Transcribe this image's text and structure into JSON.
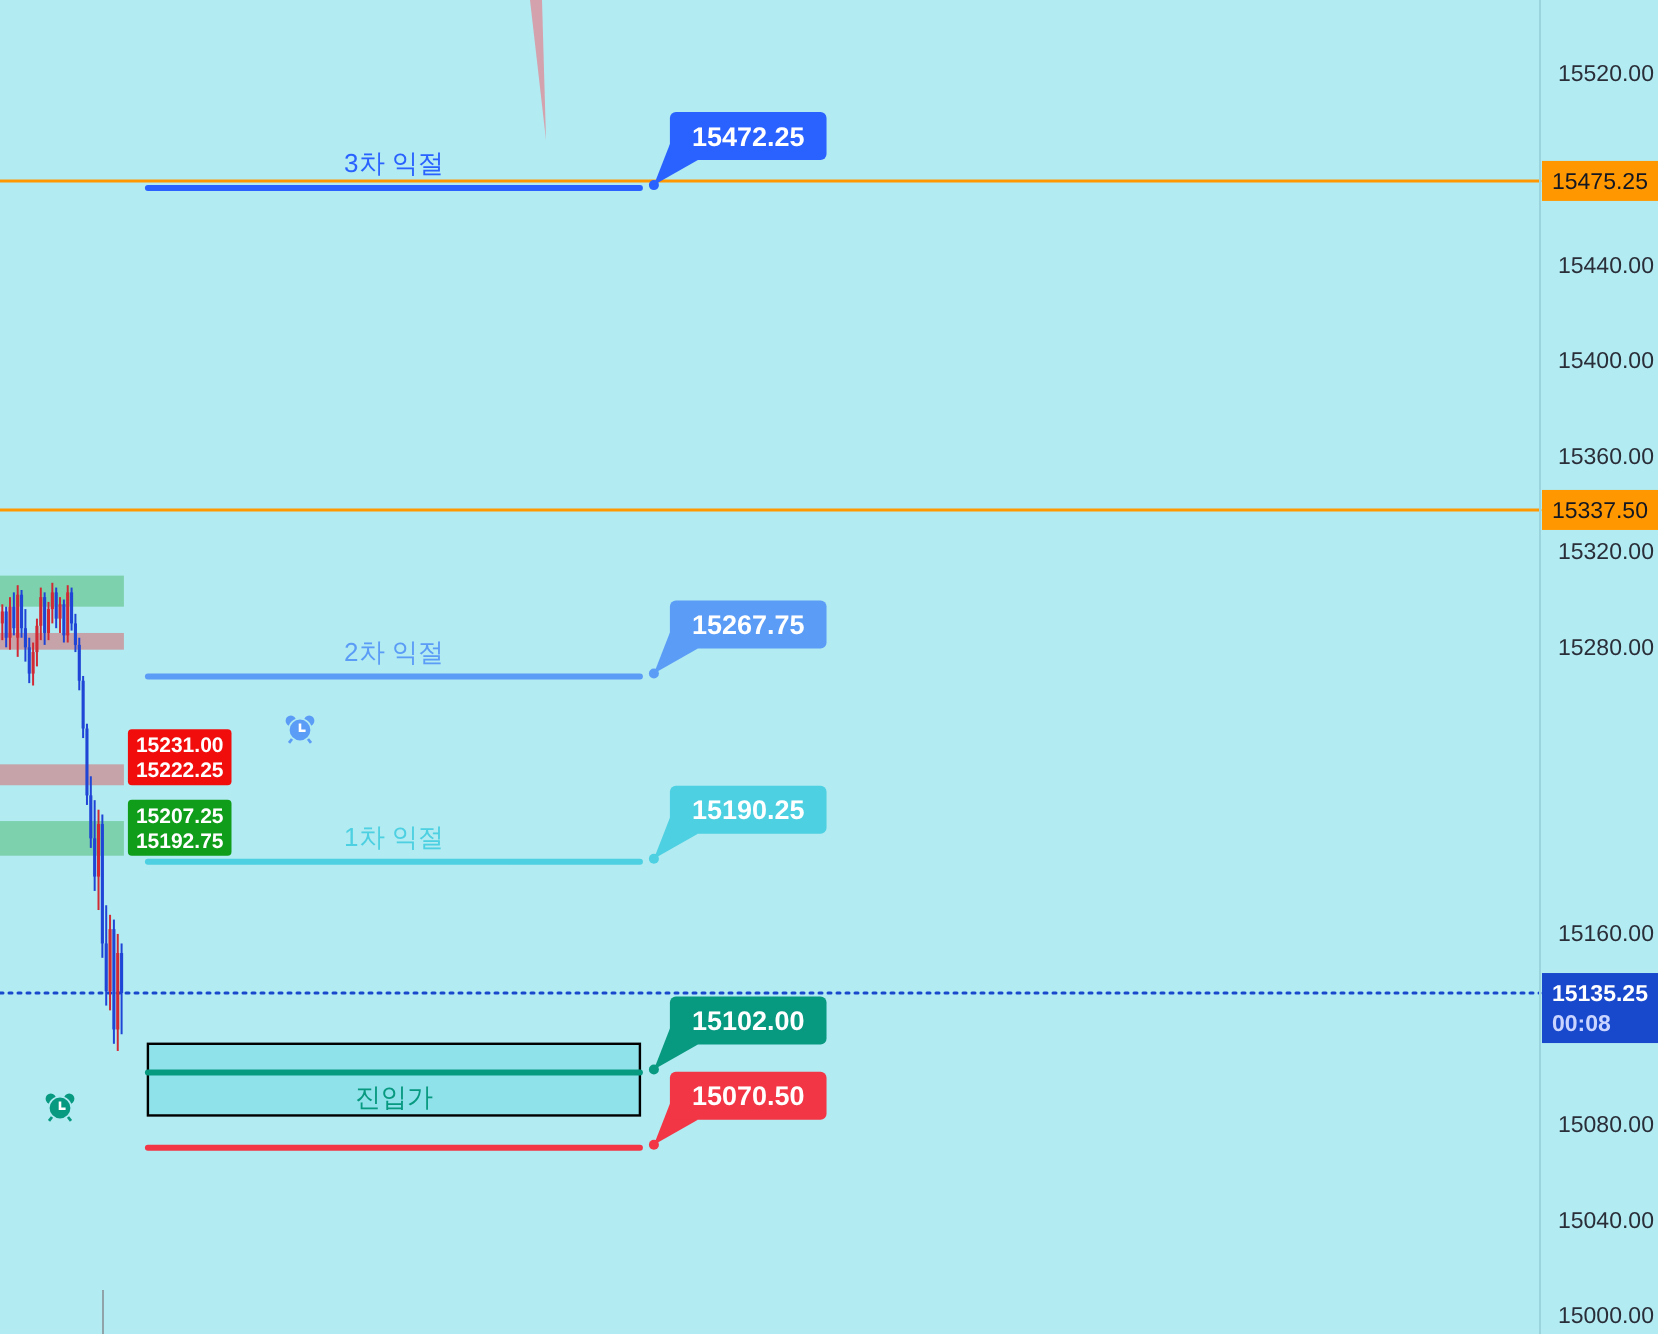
{
  "chart_data": {
    "type": "candlestick",
    "categories": [
      null,
      null,
      null,
      null,
      null,
      null,
      null,
      null,
      null,
      null,
      null,
      null,
      null,
      null,
      null,
      null,
      null,
      null,
      null,
      null,
      null,
      null,
      null,
      null,
      null,
      null,
      null,
      null,
      null,
      null,
      null,
      null,
      null,
      null,
      null,
      null,
      null,
      null,
      null,
      null,
      null,
      null,
      null,
      null,
      null,
      null,
      null,
      null,
      null,
      null,
      null,
      null,
      null,
      null,
      null,
      null,
      null,
      null,
      null,
      null,
      null,
      null,
      null,
      null,
      null,
      null,
      null,
      null,
      null,
      null,
      null,
      null,
      null,
      null,
      null,
      null,
      null,
      null,
      null,
      null,
      null,
      null,
      null,
      null,
      null,
      null,
      null,
      null,
      null,
      null,
      null,
      null,
      null,
      null,
      null,
      null,
      null,
      null,
      null,
      null,
      null,
      null,
      null,
      null,
      null,
      null,
      null,
      null,
      null,
      null,
      null,
      null,
      null,
      null,
      null,
      null,
      null,
      null,
      null,
      null,
      null,
      null,
      null,
      null,
      null,
      null,
      null,
      null,
      null,
      null,
      null,
      null,
      null,
      null,
      null,
      null,
      null,
      null,
      null,
      null,
      null,
      null,
      null,
      null,
      null,
      null,
      null,
      null,
      null,
      null,
      null,
      null,
      null,
      null,
      null,
      null,
      null,
      null,
      null,
      null,
      null,
      null,
      null,
      null,
      null,
      null,
      null,
      null,
      null,
      null,
      null,
      null,
      null,
      null,
      null,
      null,
      null,
      null,
      null,
      null,
      null,
      null,
      null,
      null,
      null,
      null,
      null,
      null,
      null,
      null,
      null,
      null,
      null,
      null,
      null,
      null,
      null,
      null,
      null,
      null,
      null,
      null,
      null,
      null,
      null,
      null,
      null,
      null,
      null,
      null,
      null,
      null,
      null,
      null,
      null,
      null,
      null,
      null,
      null,
      null,
      null,
      null,
      null,
      null,
      null,
      null,
      null,
      null,
      null,
      null,
      null,
      null,
      null,
      null,
      null,
      null,
      null,
      null,
      null,
      null,
      null,
      null,
      null,
      null,
      null,
      null,
      null,
      null,
      null,
      null,
      null,
      null,
      null,
      null,
      null,
      null,
      null,
      null,
      null,
      null,
      null,
      null,
      null,
      null,
      null,
      null,
      null,
      null,
      null,
      null,
      null,
      null,
      null,
      null,
      null,
      null,
      null,
      null,
      null,
      null,
      null,
      null,
      null,
      null,
      null,
      null,
      null,
      null,
      null,
      null,
      null,
      null,
      null,
      null,
      null,
      null,
      null,
      null,
      null,
      null,
      null,
      null,
      null,
      null,
      null,
      null,
      null,
      null,
      null,
      null,
      null,
      null,
      null,
      null,
      null,
      null,
      null,
      null,
      null,
      null,
      null,
      null,
      null,
      null,
      null,
      null,
      null,
      null,
      null,
      null,
      null,
      null,
      null,
      null,
      null,
      null,
      null,
      null,
      null,
      null,
      null,
      null,
      null,
      null,
      null,
      null,
      null,
      null,
      null,
      null,
      null,
      null,
      null,
      null,
      null,
      null,
      null,
      null,
      null,
      null,
      null,
      null,
      null,
      null,
      null,
      null,
      null,
      null,
      null,
      null,
      null,
      null,
      null,
      null,
      null,
      null,
      null,
      null,
      null,
      null,
      null,
      null,
      null,
      null,
      null,
      null,
      null,
      null,
      null,
      null,
      null,
      null,
      null,
      null,
      null,
      null,
      null,
      null,
      null,
      null
    ],
    "ohlc": [
      [
        15290,
        15298,
        15283,
        15295
      ],
      [
        15295,
        15297,
        15280,
        15284
      ],
      [
        15284,
        15301,
        15279,
        15297
      ],
      [
        15297,
        15303,
        15285,
        15288
      ],
      [
        15284,
        15306,
        15276,
        15302
      ],
      [
        15302,
        15304,
        15284,
        15288
      ],
      [
        15288,
        15296,
        15274,
        15280
      ],
      [
        15280,
        15284,
        15265,
        15269
      ],
      [
        15269,
        15282,
        15264,
        15278
      ],
      [
        15278,
        15292,
        15272,
        15289
      ],
      [
        15289,
        15305,
        15283,
        15301
      ],
      [
        15301,
        15303,
        15281,
        15286
      ],
      [
        15286,
        15299,
        15283,
        15296
      ],
      [
        15296,
        15307,
        15290,
        15303
      ],
      [
        15303,
        15305,
        15288,
        15292
      ],
      [
        15292,
        15301,
        15286,
        15298
      ],
      [
        15298,
        15300,
        15282,
        15285
      ],
      [
        15285,
        15306,
        15282,
        15303
      ],
      [
        15303,
        15305,
        15287,
        15290
      ],
      [
        15290,
        15294,
        15278,
        15281
      ],
      [
        15281,
        15284,
        15262,
        15266
      ],
      [
        15266,
        15268,
        15242,
        15246
      ],
      [
        15246,
        15248,
        15214,
        15218
      ],
      [
        15218,
        15226,
        15196,
        15200
      ],
      [
        15200,
        15216,
        15178,
        15184
      ],
      [
        15184,
        15212,
        15170,
        15206
      ],
      [
        15206,
        15210,
        15150,
        15156
      ],
      [
        15156,
        15172,
        15130,
        15136
      ],
      [
        15136,
        15168,
        15128,
        15162
      ],
      [
        15162,
        15166,
        15114,
        15120
      ],
      [
        15120,
        15160,
        15111,
        15152
      ],
      [
        15152,
        15156,
        15118,
        15135.25
      ],
      null,
      null,
      null,
      null,
      null,
      null,
      null,
      null,
      null,
      null,
      null,
      null,
      null,
      null,
      null,
      null,
      null,
      null,
      null,
      null,
      null,
      null,
      null,
      null,
      null,
      null,
      null,
      null,
      null,
      null,
      null,
      null,
      null,
      null,
      null,
      null,
      null,
      null,
      null,
      null,
      null,
      null,
      null,
      null,
      null,
      null,
      null,
      null,
      null,
      null,
      null,
      null,
      null,
      null,
      null,
      null,
      null,
      null,
      null,
      null,
      null,
      null,
      null,
      null,
      null,
      null,
      null,
      null,
      null,
      null,
      null,
      null,
      null,
      null,
      null,
      null,
      null,
      null,
      null,
      null,
      null,
      null,
      null,
      null,
      null,
      null,
      null,
      null,
      null,
      null,
      null,
      null,
      null,
      null,
      null,
      null,
      null,
      null,
      null,
      null,
      null,
      null,
      null,
      null,
      null,
      null,
      null,
      null,
      null,
      null,
      null,
      null,
      null,
      null,
      null,
      null,
      null,
      null,
      null,
      null,
      null,
      null,
      null,
      null,
      null,
      null,
      null,
      null,
      null,
      null,
      null,
      null,
      null,
      null,
      null,
      null,
      null,
      null,
      null,
      null,
      null,
      null,
      null,
      null,
      null,
      null,
      null,
      null,
      null,
      null,
      null,
      null,
      null,
      null,
      null,
      null,
      null,
      null,
      null,
      null,
      null,
      null,
      null,
      null,
      null,
      null,
      null,
      null,
      null,
      null,
      null,
      null,
      null,
      null,
      null,
      null,
      null,
      null,
      null,
      null,
      null,
      null,
      null,
      null,
      null,
      null,
      null,
      null,
      null,
      null,
      null,
      null,
      null,
      null,
      null,
      null,
      null,
      null,
      null,
      null,
      null,
      null,
      null,
      null,
      null,
      null,
      null,
      null,
      null,
      null,
      null,
      null,
      null,
      null,
      null,
      null,
      null,
      null,
      null,
      null,
      null,
      null,
      null,
      null,
      null,
      null,
      null,
      null,
      null,
      null,
      null,
      null,
      null,
      null,
      null,
      null,
      null,
      null,
      null,
      null,
      null,
      null,
      null,
      null,
      null,
      null,
      null,
      null,
      null,
      null,
      null,
      null,
      null,
      null,
      null,
      null,
      null,
      null,
      null,
      null,
      null,
      null,
      null,
      null,
      null,
      null,
      null,
      null,
      null,
      null,
      null,
      null,
      null,
      null,
      null,
      null,
      null,
      null,
      null,
      null,
      null,
      null,
      null,
      null,
      null,
      null,
      null,
      null,
      null,
      null,
      null,
      null,
      null,
      null,
      null,
      null,
      null,
      null,
      null,
      null,
      null,
      null,
      null,
      null,
      null,
      null,
      null,
      null,
      null,
      null,
      null,
      null,
      null,
      null,
      null,
      null,
      null,
      null,
      null,
      null,
      null,
      null,
      null,
      null,
      null,
      null,
      null,
      null,
      null,
      null,
      null,
      null,
      null,
      null,
      null,
      null,
      null,
      null,
      null,
      null,
      null,
      null,
      null,
      null,
      null,
      null,
      null,
      null,
      null,
      null,
      null,
      null,
      null,
      null,
      null,
      null,
      null,
      null,
      null,
      null,
      null,
      null,
      null,
      null,
      null,
      null,
      null,
      null
    ],
    "colors": [
      "#d12a35",
      "#1f45d6",
      "#d12a35",
      "#1f45d6",
      "#d12a35",
      "#1f45d6",
      "#1f45d6",
      "#1f45d6",
      "#d12a35",
      "#d12a35",
      "#d12a35",
      "#1f45d6",
      "#d12a35",
      "#d12a35",
      "#1f45d6",
      "#d12a35",
      "#1f45d6",
      "#d12a35",
      "#1f45d6",
      "#1f45d6",
      "#1f45d6",
      "#1f45d6",
      "#1f45d6",
      "#1f45d6",
      "#1f45d6",
      "#d12a35",
      "#1f45d6",
      "#1f45d6",
      "#d12a35",
      "#1f45d6",
      "#d12a35",
      "#1f45d6",
      null,
      null,
      null,
      null,
      null,
      null,
      null,
      null,
      null,
      null,
      null,
      null,
      null,
      null,
      null,
      null,
      null,
      null,
      null,
      null,
      null,
      null,
      null,
      null,
      null,
      null,
      null,
      null,
      null,
      null,
      null,
      null,
      null,
      null,
      null,
      null,
      null,
      null,
      null,
      null,
      null,
      null,
      null,
      null,
      null,
      null,
      null,
      null,
      null,
      null,
      null,
      null,
      null,
      null,
      null,
      null,
      null,
      null,
      null,
      null,
      null,
      null,
      null,
      null,
      null,
      null,
      null,
      null,
      null,
      null,
      null,
      null,
      null,
      null,
      null,
      null,
      null,
      null,
      null,
      null,
      null,
      null,
      null,
      null,
      null,
      null,
      null,
      null,
      null,
      null,
      null,
      null,
      null,
      null,
      null,
      null,
      null,
      null,
      null,
      null,
      null,
      null,
      null,
      null,
      null,
      null,
      null,
      null,
      null,
      null,
      null,
      null,
      null,
      null,
      null,
      null,
      null,
      null,
      null,
      null,
      null,
      null,
      null,
      null,
      null,
      null,
      null,
      null,
      null,
      null,
      null,
      null,
      null,
      null,
      null,
      null,
      null,
      null,
      null,
      null,
      null,
      null,
      null,
      null,
      null,
      null,
      null,
      null,
      null,
      null,
      null,
      null,
      null,
      null,
      null,
      null,
      null,
      null,
      null,
      null,
      null,
      null,
      null,
      null,
      null,
      null,
      null,
      null,
      null,
      null,
      null,
      null,
      null,
      null,
      null,
      null,
      null,
      null,
      null,
      null,
      null,
      null,
      null,
      null,
      null,
      null,
      null,
      null,
      null,
      null,
      null,
      null,
      null,
      null,
      null,
      null,
      null,
      null,
      null,
      null,
      null,
      null,
      null,
      null,
      null,
      null,
      null,
      null,
      null,
      null,
      null,
      null,
      null,
      null,
      null,
      null,
      null,
      null,
      null,
      null,
      null,
      null,
      null,
      null,
      null,
      null,
      null,
      null,
      null,
      null,
      null,
      null,
      null,
      null,
      null,
      null,
      null,
      null,
      null,
      null,
      null,
      null,
      null,
      null,
      null,
      null,
      null,
      null,
      null,
      null,
      null,
      null,
      null,
      null,
      null,
      null,
      null,
      null,
      null,
      null,
      null,
      null,
      null,
      null,
      null,
      null,
      null,
      null,
      null,
      null,
      null,
      null,
      null,
      null,
      null,
      null,
      null,
      null,
      null,
      null,
      null,
      null,
      null,
      null,
      null,
      null,
      null,
      null,
      null,
      null,
      null,
      null,
      null,
      null,
      null,
      null,
      null,
      null,
      null,
      null,
      null,
      null,
      null,
      null,
      null,
      null,
      null,
      null,
      null,
      null,
      null,
      null,
      null,
      null,
      null,
      null,
      null,
      null,
      null,
      null,
      null,
      null,
      null,
      null,
      null,
      null,
      null,
      null,
      null,
      null,
      null,
      null,
      null,
      null,
      null,
      null,
      null,
      null,
      null,
      null,
      null,
      null,
      null,
      null,
      null,
      null,
      null,
      null,
      null,
      null,
      null,
      null,
      null,
      null,
      null,
      null,
      null,
      null,
      null,
      null,
      null,
      null,
      null,
      null,
      null,
      null,
      null,
      null
    ],
    "ylim": [
      14992.5,
      15551
    ],
    "yticks": [
      {
        "value": 15000,
        "label": "15000.00"
      },
      {
        "value": 15040,
        "label": "15040.00"
      },
      {
        "value": 15080,
        "label": "15080.00"
      },
      {
        "value": 15160,
        "label": "15160.00"
      },
      {
        "value": 15280,
        "label": "15280.00"
      },
      {
        "value": 15320,
        "label": "15320.00"
      },
      {
        "value": 15360,
        "label": "15360.00"
      },
      {
        "value": 15400,
        "label": "15400.00"
      },
      {
        "value": 15440,
        "label": "15440.00"
      },
      {
        "value": 15520,
        "label": "15520.00"
      }
    ],
    "tick_labels": "y",
    "ref_lines": [
      {
        "axis": "y",
        "value": 15475.25,
        "label": "15475.25",
        "color": "#ff9800"
      },
      {
        "axis": "y",
        "value": 15337.5,
        "label": "15337.50",
        "color": "#ff9800"
      },
      {
        "axis": "y",
        "value": 15135.25,
        "label": "15135.25\n00:08",
        "color": "#1848cc",
        "line_style": "dotted"
      },
      {
        "axis": "y",
        "value": 15472.25,
        "label": "3차 익절",
        "color": "#2962ff"
      },
      {
        "axis": "y",
        "value": 15267.75,
        "label": "2차 익절",
        "color": "#5b9cf6"
      },
      {
        "axis": "y",
        "value": 15190.25,
        "label": "1차 익절",
        "color": "#4dd0e1"
      },
      {
        "axis": "y",
        "value": 15102,
        "label": "진입가",
        "color": "#089981"
      },
      {
        "axis": "y",
        "value": 15070.5,
        "color": "#f23645"
      }
    ],
    "bands": [
      {
        "axis": "y",
        "from": 15297,
        "to": 15310,
        "color": "#0f9d1a"
      },
      {
        "axis": "y",
        "from": 15279,
        "to": 15286,
        "color": "#f20d0d"
      },
      {
        "axis": "y",
        "from": 15222.25,
        "to": 15231,
        "label": "15231.00\n15222.25",
        "color": "#f20d0d"
      },
      {
        "axis": "y",
        "from": 15192.75,
        "to": 15207.25,
        "label": "15207.25\n15192.75",
        "color": "#0f9d1a"
      },
      {
        "axis": "y",
        "from": 15084,
        "to": 15114,
        "color": "#79dce5"
      }
    ],
    "annotations": [
      "15472.25",
      "15267.75",
      "15190.25",
      "15102.00",
      "15070.50"
    ]
  }
}
